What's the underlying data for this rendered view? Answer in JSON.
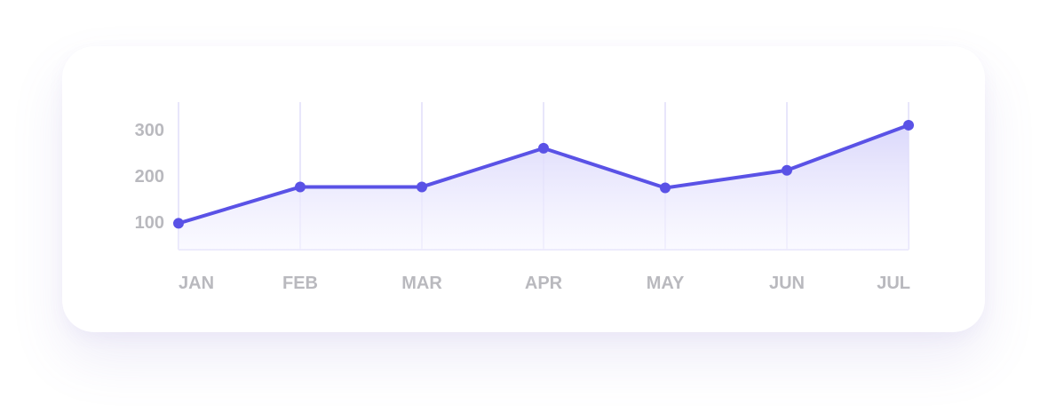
{
  "chart_data": {
    "type": "area",
    "categories": [
      "JAN",
      "FEB",
      "MAR",
      "APR",
      "MAY",
      "JUN",
      "JUL"
    ],
    "values": [
      97,
      176,
      176,
      260,
      174,
      212,
      310
    ],
    "yticks": [
      100,
      200,
      300
    ],
    "ylim": [
      40,
      360
    ],
    "grid": "vertical",
    "title": "",
    "xlabel": "",
    "ylabel": ""
  },
  "colors": {
    "line": "#5a52e6",
    "fill_top": "#d9d6fb",
    "fill_bottom": "#f7f6ff",
    "grid": "#e1defa",
    "tick_text": "#b9b9be"
  }
}
